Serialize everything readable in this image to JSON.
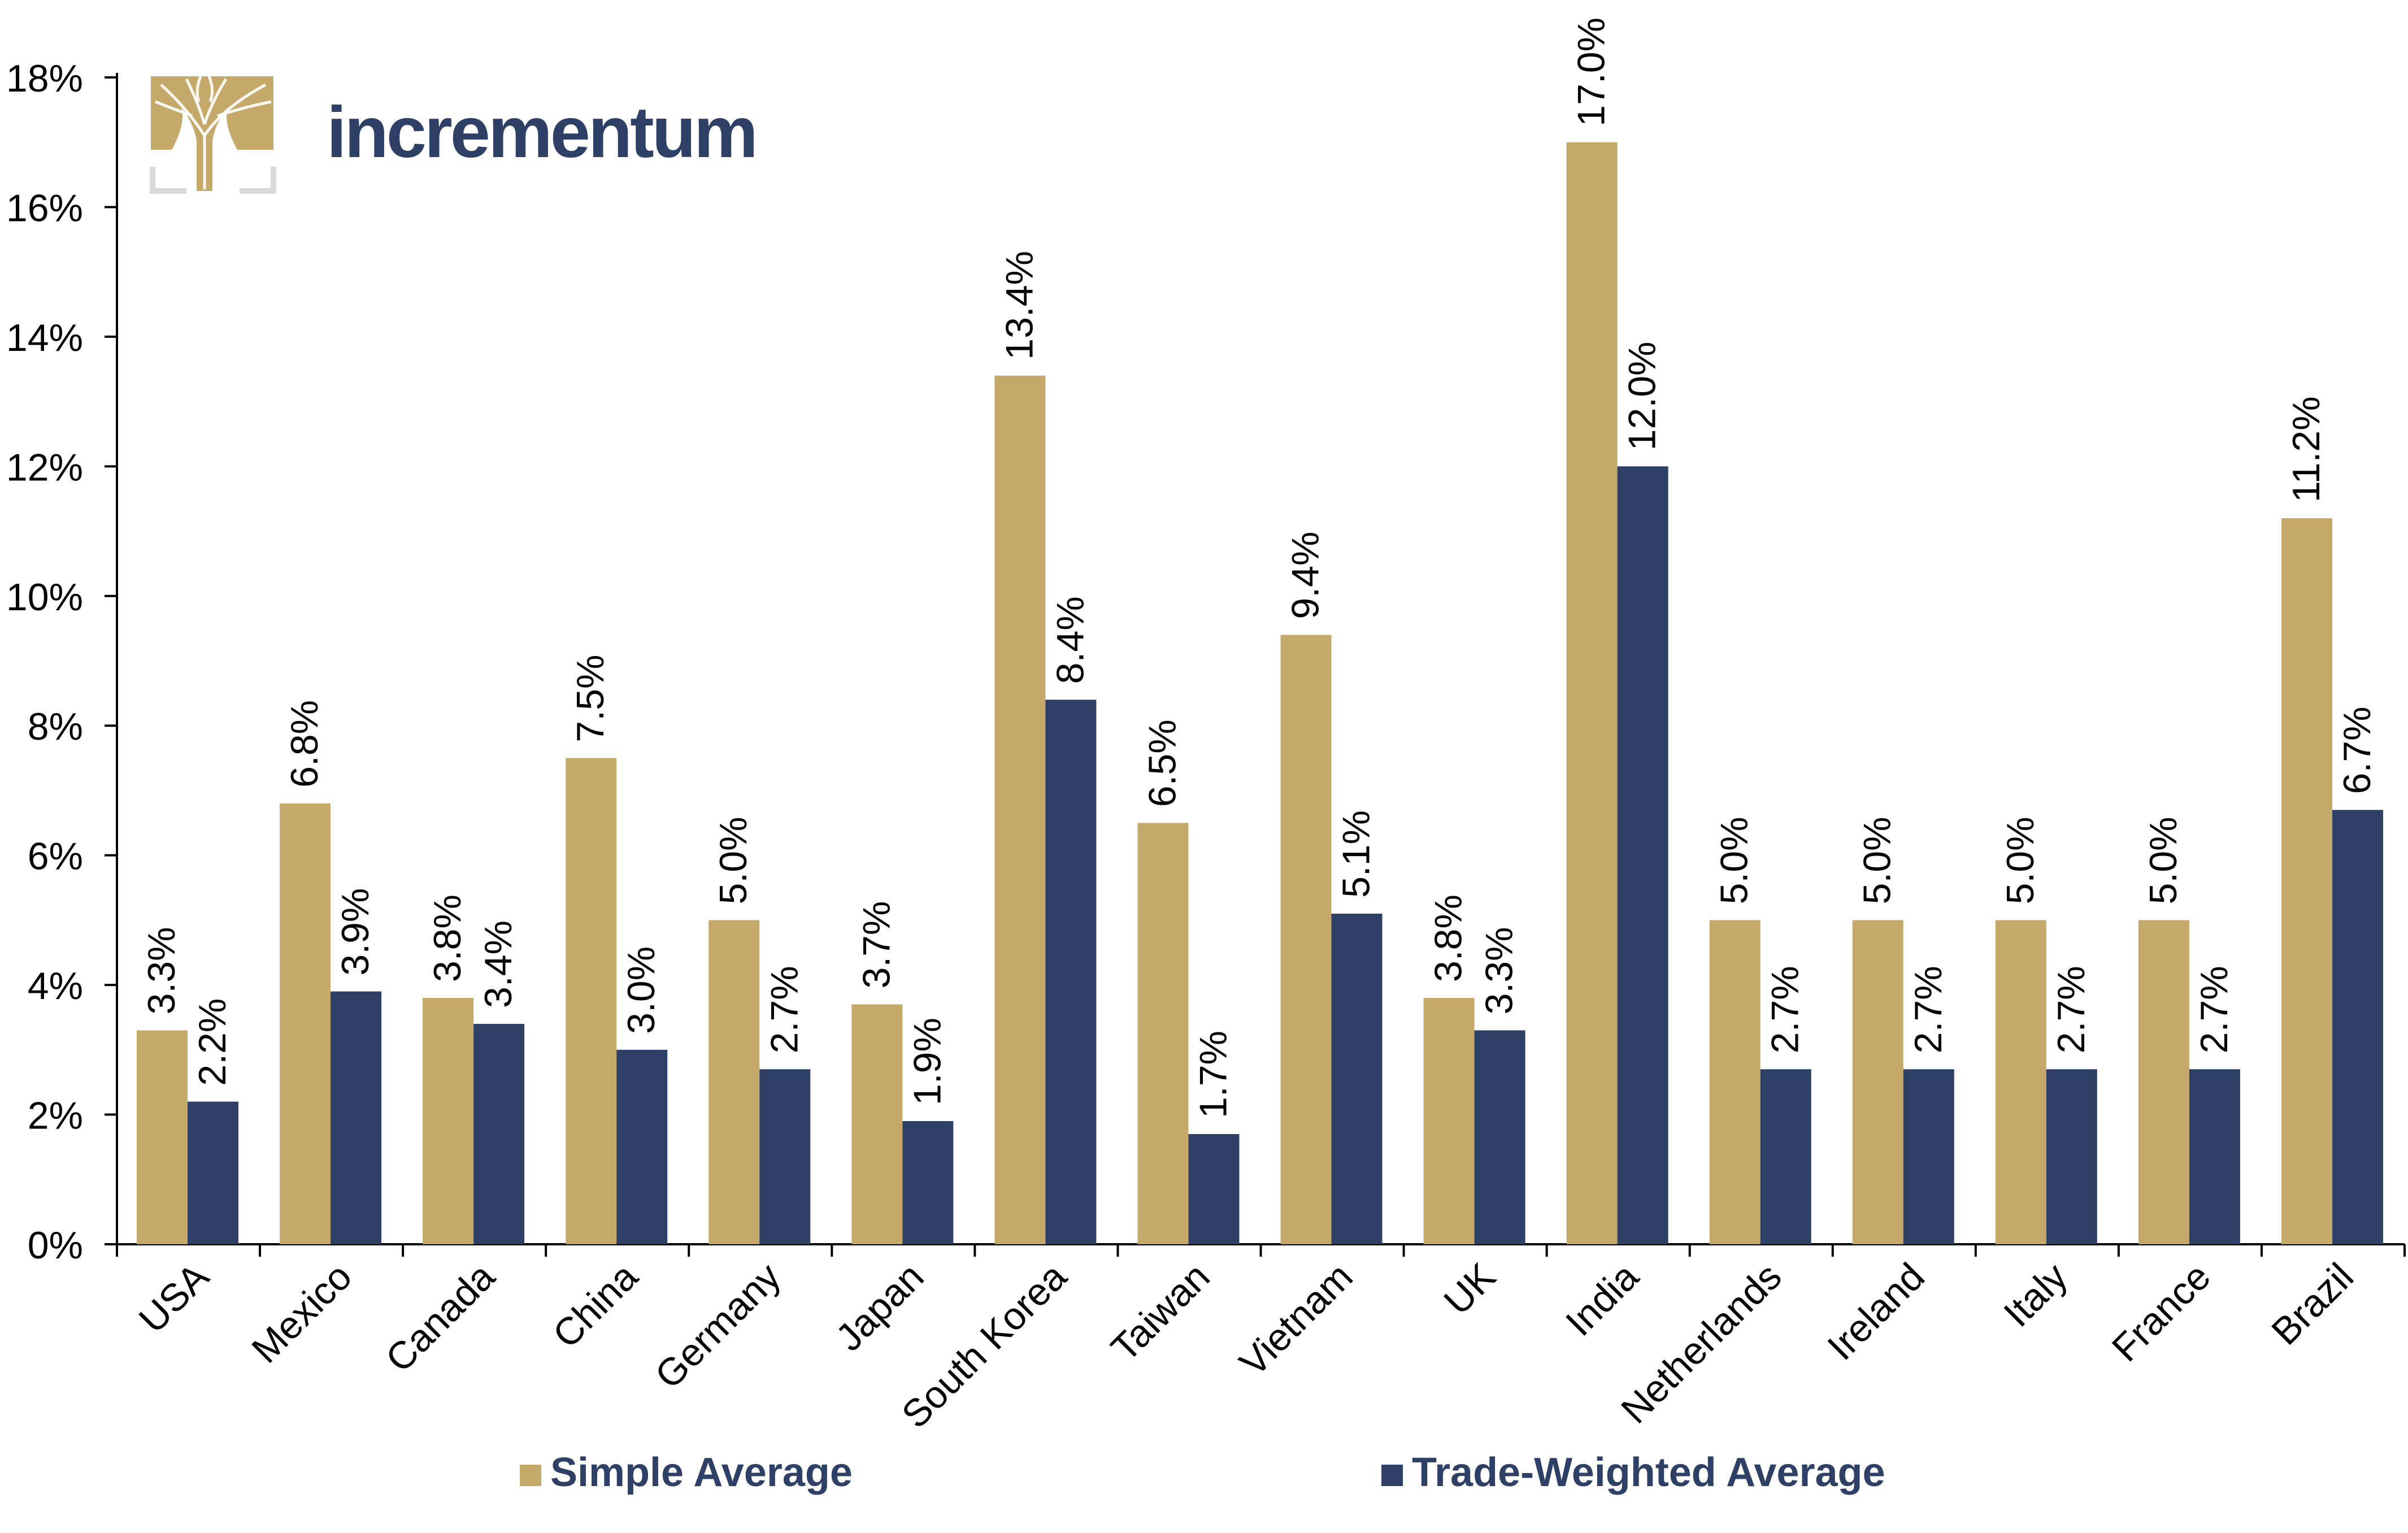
{
  "brand": {
    "name": "incrementum",
    "logo_icon": "tree-icon",
    "logo_color": "#C4A96A",
    "wordmark_color": "#2E4066"
  },
  "colors": {
    "simple": "#C4A96A",
    "trade_weighted": "#2E4066",
    "axis": "#000000",
    "text": "#000000",
    "logo_bracket": "#D9D9D9"
  },
  "chart_data": {
    "type": "bar",
    "title": "",
    "xlabel": "",
    "ylabel": "",
    "ylim": [
      0,
      18
    ],
    "yticks": [
      0,
      2,
      4,
      6,
      8,
      10,
      12,
      14,
      16,
      18
    ],
    "ytick_labels": [
      "0%",
      "2%",
      "4%",
      "6%",
      "8%",
      "10%",
      "12%",
      "14%",
      "16%",
      "18%"
    ],
    "grid": false,
    "legend_position": "bottom",
    "categories": [
      "USA",
      "Mexico",
      "Canada",
      "China",
      "Germany",
      "Japan",
      "South Korea",
      "Taiwan",
      "Vietnam",
      "UK",
      "India",
      "Netherlands",
      "Ireland",
      "Italy",
      "France",
      "Brazil"
    ],
    "series": [
      {
        "name": "Simple Average",
        "color": "#C4A96A",
        "values": [
          3.3,
          6.8,
          3.8,
          7.5,
          5.0,
          3.7,
          13.4,
          6.5,
          9.4,
          3.8,
          17.0,
          5.0,
          5.0,
          5.0,
          5.0,
          11.2
        ],
        "labels": [
          "3.3%",
          "6.8%",
          "3.8%",
          "7.5%",
          "5.0%",
          "3.7%",
          "13.4%",
          "6.5%",
          "9.4%",
          "3.8%",
          "17.0%",
          "5.0%",
          "5.0%",
          "5.0%",
          "5.0%",
          "11.2%"
        ]
      },
      {
        "name": "Trade-Weighted Average",
        "color": "#2E4066",
        "values": [
          2.2,
          3.9,
          3.4,
          3.0,
          2.7,
          1.9,
          8.4,
          1.7,
          5.1,
          3.3,
          12.0,
          2.7,
          2.7,
          2.7,
          2.7,
          6.7
        ],
        "labels": [
          "2.2%",
          "3.9%",
          "3.4%",
          "3.0%",
          "2.7%",
          "1.9%",
          "8.4%",
          "1.7%",
          "5.1%",
          "3.3%",
          "12.0%",
          "2.7%",
          "2.7%",
          "2.7%",
          "2.7%",
          "6.7%"
        ]
      }
    ]
  }
}
